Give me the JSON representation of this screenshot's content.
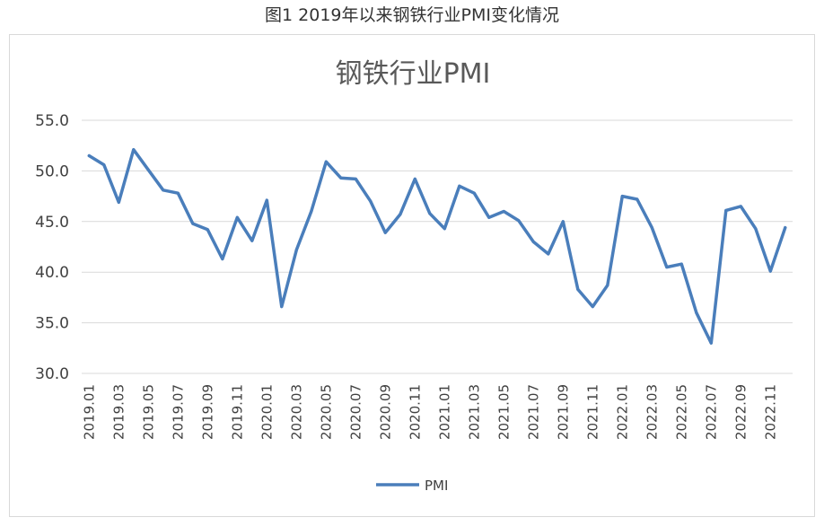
{
  "caption": "图1  2019年以来钢铁行业PMI变化情况",
  "colors": {
    "series": "#4a7ebb",
    "grid": "#d9d9d9"
  },
  "chart_data": {
    "type": "line",
    "title": "钢铁行业PMI",
    "xlabel": "",
    "ylabel": "",
    "ylim": [
      30,
      55
    ],
    "yticks": [
      "55.0",
      "50.0",
      "45.0",
      "40.0",
      "35.0",
      "30.0"
    ],
    "xtick_labels": [
      "2019.01",
      "2019.03",
      "2019.05",
      "2019.07",
      "2019.09",
      "2019.11",
      "2020.01",
      "2020.03",
      "2020.05",
      "2020.07",
      "2020.09",
      "2020.11",
      "2021.01",
      "2021.03",
      "2021.05",
      "2021.07",
      "2021.09",
      "2021.11",
      "2022.01",
      "2022.03",
      "2022.05",
      "2022.07",
      "2022.09",
      "2022.11"
    ],
    "grid": true,
    "legend": "bottom",
    "x": [
      "2019.01",
      "2019.02",
      "2019.03",
      "2019.04",
      "2019.05",
      "2019.06",
      "2019.07",
      "2019.08",
      "2019.09",
      "2019.10",
      "2019.11",
      "2019.12",
      "2020.01",
      "2020.02",
      "2020.03",
      "2020.04",
      "2020.05",
      "2020.06",
      "2020.07",
      "2020.08",
      "2020.09",
      "2020.10",
      "2020.11",
      "2020.12",
      "2021.01",
      "2021.02",
      "2021.03",
      "2021.04",
      "2021.05",
      "2021.06",
      "2021.07",
      "2021.08",
      "2021.09",
      "2021.10",
      "2021.11",
      "2021.12",
      "2022.01",
      "2022.02",
      "2022.03",
      "2022.04",
      "2022.05",
      "2022.06",
      "2022.07",
      "2022.08",
      "2022.09",
      "2022.10",
      "2022.11",
      "2022.12"
    ],
    "series": [
      {
        "name": "PMI",
        "values": [
          51.5,
          50.6,
          46.9,
          52.1,
          50.1,
          48.1,
          47.8,
          44.8,
          44.2,
          41.3,
          45.4,
          43.1,
          47.1,
          36.6,
          42.2,
          46.0,
          50.9,
          49.3,
          49.2,
          47.0,
          43.9,
          45.7,
          49.2,
          45.8,
          44.3,
          48.5,
          47.8,
          45.4,
          46.0,
          45.1,
          43.0,
          41.8,
          45.0,
          38.3,
          36.6,
          38.7,
          47.5,
          47.2,
          44.4,
          40.5,
          40.8,
          36.0,
          33.0,
          46.1,
          46.5,
          44.3,
          40.1,
          44.4
        ]
      }
    ]
  }
}
